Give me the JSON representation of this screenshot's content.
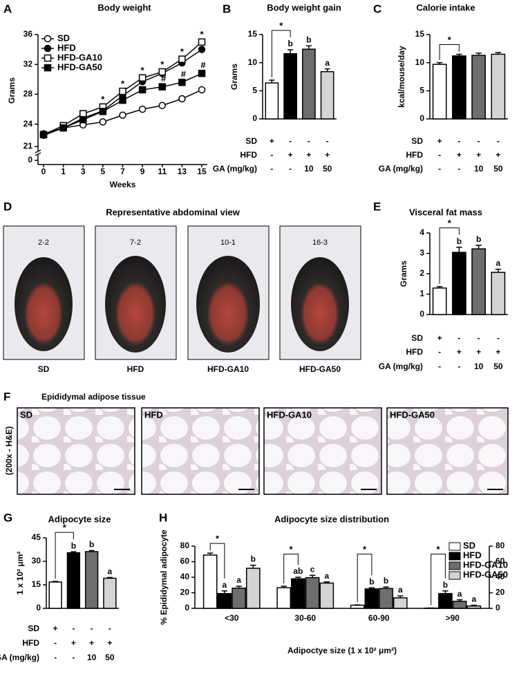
{
  "chart_data": [
    {
      "type": "line",
      "panel": "A",
      "title": "Body weight",
      "ylabel": "Grams",
      "xlabel": "Weeks",
      "categories": [
        "0",
        "1",
        "3",
        "5",
        "7",
        "9",
        "11",
        "13",
        "15"
      ],
      "ylim": [
        21,
        36
      ],
      "yticks": [
        0,
        21,
        24,
        28,
        32,
        36
      ],
      "axis_break": true,
      "legend": "upper left",
      "series": [
        {
          "name": "SD",
          "color": "#000000",
          "fill": "#ffffff",
          "marker": "circle",
          "values": [
            22.7,
            23.5,
            23.9,
            24.3,
            25.2,
            26.0,
            26.5,
            27.4,
            28.6
          ]
        },
        {
          "name": "HFD",
          "color": "#000000",
          "fill": "#000000",
          "marker": "circle",
          "values": [
            22.5,
            23.5,
            24.8,
            25.8,
            27.8,
            29.7,
            30.8,
            32.2,
            34.0
          ]
        },
        {
          "name": "HFD-GA10",
          "color": "#000000",
          "fill": "#ffffff",
          "marker": "square",
          "values": [
            22.6,
            23.8,
            25.4,
            26.3,
            28.4,
            30.2,
            31.0,
            32.7,
            35.0
          ]
        },
        {
          "name": "HFD-GA50",
          "color": "#000000",
          "fill": "#000000",
          "marker": "square",
          "values": [
            22.6,
            23.5,
            24.6,
            25.7,
            27.2,
            28.6,
            29.0,
            29.6,
            30.8
          ]
        }
      ],
      "annotations": [
        {
          "text": "*",
          "series": 2,
          "index": 3
        },
        {
          "text": "*",
          "series": 2,
          "index": 4
        },
        {
          "text": "*",
          "series": 2,
          "index": 5
        },
        {
          "text": "*",
          "series": 2,
          "index": 6
        },
        {
          "text": "*",
          "series": 2,
          "index": 7
        },
        {
          "text": "*",
          "series": 2,
          "index": 8
        },
        {
          "text": "#",
          "series": 3,
          "index": 6
        },
        {
          "text": "#",
          "series": 3,
          "index": 7
        },
        {
          "text": "#",
          "series": 3,
          "index": 8
        }
      ]
    },
    {
      "type": "bar",
      "panel": "B",
      "title": "Body weight gain",
      "ylabel": "Grams",
      "values": [
        6.4,
        11.6,
        12.4,
        8.4
      ],
      "errors": [
        0.5,
        0.7,
        0.6,
        0.5
      ],
      "colors": [
        "#ffffff",
        "#000000",
        "#6e6e6e",
        "#d4d4d4"
      ],
      "letters": [
        null,
        "b",
        "b",
        "a"
      ],
      "comparison": {
        "bars": [
          0,
          1
        ],
        "label": "*"
      },
      "ylim": [
        0,
        15
      ],
      "yticks": [
        0,
        5,
        10,
        15
      ],
      "table": [
        {
          "label": "SD",
          "cells": [
            "+",
            "-",
            "-",
            "-"
          ]
        },
        {
          "label": "HFD",
          "cells": [
            "-",
            "+",
            "+",
            "+"
          ]
        },
        {
          "label": "GA (mg/kg)",
          "cells": [
            "-",
            "-",
            "10",
            "50"
          ]
        }
      ]
    },
    {
      "type": "bar",
      "panel": "C",
      "title": "Calorie intake",
      "ylabel": "kcal/mouse/day",
      "values": [
        9.7,
        11.2,
        11.3,
        11.5
      ],
      "errors": [
        0.3,
        0.3,
        0.4,
        0.3
      ],
      "colors": [
        "#ffffff",
        "#000000",
        "#6e6e6e",
        "#d4d4d4"
      ],
      "letters": [
        null,
        null,
        null,
        null
      ],
      "comparison": {
        "bars": [
          0,
          1
        ],
        "label": "*"
      },
      "ylim": [
        0,
        15
      ],
      "yticks": [
        0,
        5,
        10,
        15
      ],
      "table": [
        {
          "label": "SD",
          "cells": [
            "+",
            "-",
            "-",
            "-"
          ]
        },
        {
          "label": "HFD",
          "cells": [
            "-",
            "+",
            "+",
            "+"
          ]
        },
        {
          "label": "GA (mg/kg)",
          "cells": [
            "-",
            "-",
            "10",
            "50"
          ]
        }
      ]
    },
    {
      "type": "bar",
      "panel": "E",
      "title": "Visceral fat mass",
      "ylabel": "Grams",
      "values": [
        1.3,
        3.05,
        3.22,
        2.07
      ],
      "errors": [
        0.07,
        0.25,
        0.18,
        0.15
      ],
      "colors": [
        "#ffffff",
        "#000000",
        "#6e6e6e",
        "#d4d4d4"
      ],
      "letters": [
        null,
        "b",
        "b",
        "a"
      ],
      "comparison": {
        "bars": [
          0,
          1
        ],
        "label": "*"
      },
      "ylim": [
        0,
        4
      ],
      "yticks": [
        0,
        1,
        2,
        3,
        4
      ],
      "table": [
        {
          "label": "SD",
          "cells": [
            "+",
            "-",
            "-",
            "-"
          ]
        },
        {
          "label": "HFD",
          "cells": [
            "-",
            "+",
            "+",
            "+"
          ]
        },
        {
          "label": "GA (mg/kg)",
          "cells": [
            "-",
            "-",
            "10",
            "50"
          ]
        }
      ]
    },
    {
      "type": "bar",
      "panel": "G",
      "title": "Adipocyte size",
      "ylabel": "1 x 10² μm²",
      "values": [
        16.8,
        35.5,
        36.2,
        19.2
      ],
      "errors": [
        0.4,
        0.6,
        0.7,
        0.5
      ],
      "colors": [
        "#ffffff",
        "#000000",
        "#6e6e6e",
        "#d4d4d4"
      ],
      "letters": [
        null,
        "b",
        "b",
        "a"
      ],
      "comparison": {
        "bars": [
          0,
          1
        ],
        "label": "*"
      },
      "ylim": [
        0,
        45
      ],
      "yticks": [
        0,
        15,
        30,
        45
      ],
      "table": [
        {
          "label": "SD",
          "cells": [
            "+",
            "-",
            "-",
            "-"
          ]
        },
        {
          "label": "HFD",
          "cells": [
            "-",
            "+",
            "+",
            "+"
          ]
        },
        {
          "label": "GA (mg/kg)",
          "cells": [
            "-",
            "-",
            "10",
            "50"
          ]
        }
      ]
    },
    {
      "type": "bar",
      "panel": "H",
      "title": "Adipocyte size distribution",
      "ylabel": "% Epididymal adipocyte",
      "xlabel": "Adipoctye size (1 x 10² μm²)",
      "categories": [
        "<30",
        "30-60",
        "60-90",
        ">90"
      ],
      "ylim": [
        0,
        80
      ],
      "yticks": [
        0,
        20,
        40,
        60,
        80
      ],
      "y2lim": [
        0,
        80
      ],
      "y2ticks": [
        0,
        20,
        40,
        60,
        80
      ],
      "legend": "upper right",
      "series": [
        {
          "name": "SD",
          "color": "#ffffff",
          "values": [
            68.5,
            26.5,
            4,
            0.3
          ],
          "errors": [
            2.5,
            2,
            0.5,
            0.2
          ],
          "letters": [
            null,
            null,
            null,
            null
          ]
        },
        {
          "name": "HFD",
          "color": "#000000",
          "values": [
            19,
            38,
            25,
            19
          ],
          "errors": [
            3.5,
            2,
            1.5,
            3.5
          ],
          "letters": [
            "a",
            "ab",
            "b",
            "b"
          ]
        },
        {
          "name": "HFD-GA10",
          "color": "#6e6e6e",
          "values": [
            26,
            39.5,
            25.5,
            9
          ],
          "errors": [
            2.5,
            3,
            2,
            2
          ],
          "letters": [
            "a",
            "c",
            "b",
            "a"
          ]
        },
        {
          "name": "HFD-GA50",
          "color": "#d4d4d4",
          "values": [
            51.5,
            32.5,
            13.5,
            3
          ],
          "errors": [
            4,
            1.5,
            2.5,
            1
          ],
          "letters": [
            "b",
            "a",
            "a",
            "a"
          ]
        }
      ],
      "comparisons": [
        {
          "series": [
            0,
            1
          ],
          "label": "*"
        },
        {
          "series": [
            0,
            1
          ],
          "label": "*"
        },
        {
          "series": [
            0,
            1
          ],
          "label": "*"
        },
        {
          "series": [
            0,
            1
          ],
          "label": "*"
        }
      ]
    }
  ],
  "abdominal_view": {
    "panel": "D",
    "title": "Representative abdominal view",
    "photos": [
      {
        "label": "SD",
        "tag": "2-2"
      },
      {
        "label": "HFD",
        "tag": "7-2"
      },
      {
        "label": "HFD-GA10",
        "tag": "10-1"
      },
      {
        "label": "HFD-GA50",
        "tag": "16-3"
      }
    ]
  },
  "histology": {
    "panel": "F",
    "title": "Epididymal adipose tissue",
    "side_label": "(200x - H&E)",
    "images": [
      {
        "label": "SD"
      },
      {
        "label": "HFD"
      },
      {
        "label": "HFD-GA10"
      },
      {
        "label": "HFD-GA50"
      }
    ]
  }
}
